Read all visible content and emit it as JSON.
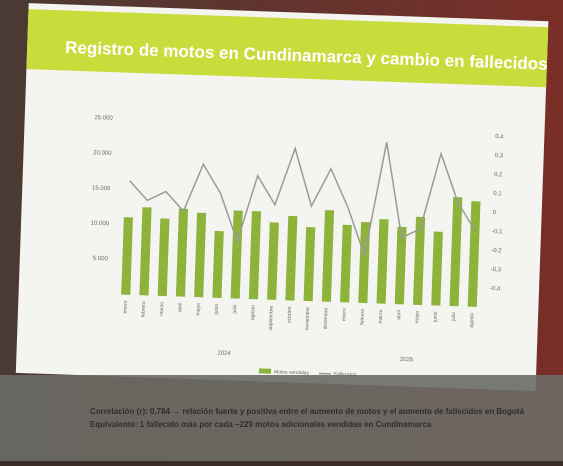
{
  "chart_data": {
    "type": "bar_line",
    "title": "Registro de motos en Cundinamarca y cambio en fallecidos",
    "categories": [
      "enero",
      "febrero",
      "marzo",
      "abril",
      "mayo",
      "junio",
      "julio",
      "agosto",
      "septiembre",
      "octubre",
      "noviembre",
      "diciembre",
      "enero",
      "febrero",
      "marzo",
      "abril",
      "mayo",
      "junio",
      "julio",
      "agosto"
    ],
    "group_labels": [
      "2024",
      "2025"
    ],
    "series": [
      {
        "name": "Motos vendidas",
        "color": "#8db33a",
        "values": [
          11000,
          12500,
          11000,
          12500,
          12000,
          9500,
          12500,
          12500,
          11000,
          12000,
          10500,
          13000,
          11000,
          11500,
          12000,
          11000,
          12500,
          10500,
          15500,
          15000
        ]
      },
      {
        "name": "Fallecidos",
        "color": "#9a9a9a",
        "axis": "y2",
        "values": [
          0.1,
          0.0,
          0.05,
          -0.05,
          0.2,
          0.05,
          -0.2,
          0.15,
          0.0,
          0.3,
          0.0,
          0.2,
          0.0,
          -0.25,
          0.35,
          -0.15,
          -0.1,
          0.3,
          0.05,
          -0.1
        ]
      }
    ],
    "ylim": [
      0,
      27000
    ],
    "yticks": [
      {
        "value": 5000,
        "label": "5.000"
      },
      {
        "value": 10000,
        "label": "10.000"
      },
      {
        "value": 15000,
        "label": "15.000"
      },
      {
        "value": 20000,
        "label": "20.000"
      },
      {
        "value": 25000,
        "label": "25.000"
      }
    ],
    "y2lim": [
      -0.5,
      0.5
    ],
    "y2ticks": [
      {
        "value": 0.4,
        "label": "0,4"
      },
      {
        "value": 0.3,
        "label": "0,3"
      },
      {
        "value": 0.2,
        "label": "0,2"
      },
      {
        "value": 0.1,
        "label": "0,1"
      },
      0,
      {
        "value": -0.1,
        "label": "-0,1"
      },
      {
        "value": -0.2,
        "label": "-0,2"
      },
      {
        "value": -0.3,
        "label": "-0,3"
      },
      {
        "value": -0.4,
        "label": "-0,4"
      }
    ],
    "annotations": [
      "Correlación (r): 0,784 → relación fuerte y positiva entre el aumento de motos y el aumento de fallecidos en Bogotá",
      "Equivalente: 1 fallecido más por cada ~229 motos adicionales vendidas en Cundinamarca"
    ]
  }
}
